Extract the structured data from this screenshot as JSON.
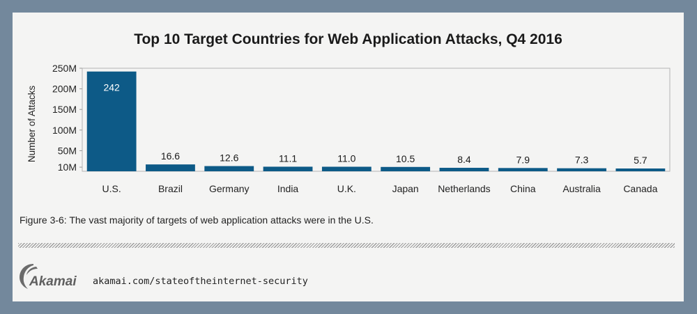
{
  "chart_data": {
    "type": "bar",
    "title": "Top 10 Target Countries for Web Application Attacks, Q4 2016",
    "xlabel": "",
    "ylabel": "Number of Attacks",
    "categories": [
      "U.S.",
      "Brazil",
      "Germany",
      "India",
      "U.K.",
      "Japan",
      "Netherlands",
      "China",
      "Australia",
      "Canada"
    ],
    "values": [
      242,
      16.6,
      12.6,
      11.1,
      11.0,
      10.5,
      8.4,
      7.9,
      7.3,
      5.7
    ],
    "value_labels": [
      "242",
      "16.6",
      "12.6",
      "11.1",
      "11.0",
      "10.5",
      "8.4",
      "7.9",
      "7.3",
      "5.7"
    ],
    "unit": "M",
    "yticks": [
      10,
      50,
      100,
      150,
      200,
      250
    ],
    "ytick_labels": [
      "10M",
      "50M",
      "100M",
      "150M",
      "200M",
      "250M"
    ],
    "ylim": [
      0,
      250
    ],
    "bar_color": "#0d5a87",
    "grid": false,
    "legend": "none"
  },
  "caption": "Figure 3-6: The vast majority of targets of web application attacks were in the U.S.",
  "footer": {
    "logo_text": "Akamai",
    "url": "akamai.com/stateoftheinternet-security"
  },
  "colors": {
    "background": "#73889c",
    "card": "#f4f4f3"
  }
}
